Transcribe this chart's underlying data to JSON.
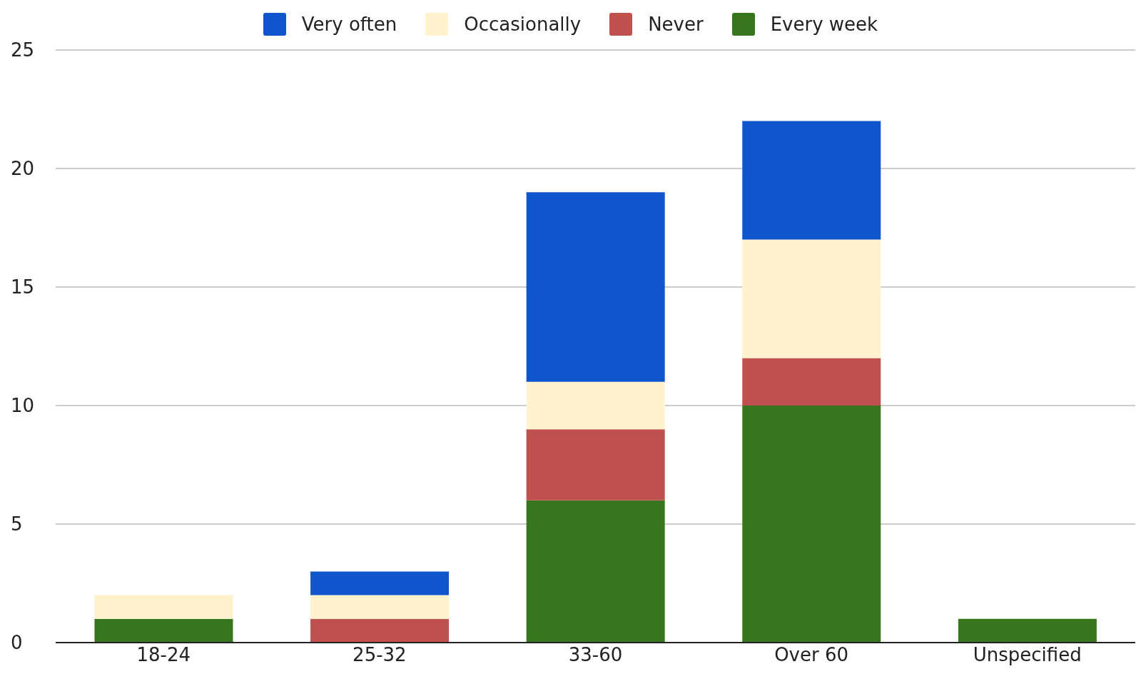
{
  "chart_data": {
    "type": "bar",
    "stacked": true,
    "categories": [
      "18-24",
      "25-32",
      "33-60",
      "Over 60",
      "Unspecified"
    ],
    "series": [
      {
        "name": "Every week",
        "color": "#38761d",
        "values": [
          1,
          0,
          6,
          10,
          1
        ]
      },
      {
        "name": "Never",
        "color": "#c0504d",
        "values": [
          0,
          1,
          3,
          2,
          0
        ]
      },
      {
        "name": "Occasionally",
        "color": "#fff2cc",
        "values": [
          1,
          1,
          2,
          5,
          0
        ]
      },
      {
        "name": "Very often",
        "color": "#1155cc",
        "values": [
          0,
          1,
          8,
          5,
          0
        ]
      }
    ],
    "ylim": [
      0,
      25
    ],
    "yticks": [
      0,
      5,
      10,
      15,
      20,
      25
    ],
    "grid": "y",
    "legend": "top"
  }
}
